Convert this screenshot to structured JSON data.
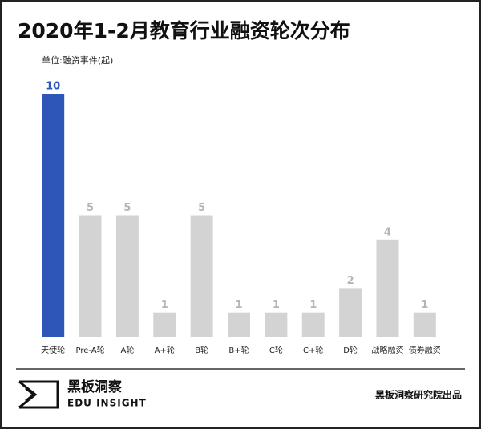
{
  "chart_data": {
    "type": "bar",
    "title": "2020年1-2月教育行业融资轮次分布",
    "subtitle": "单位:融资事件(起)",
    "categories": [
      "天使轮",
      "Pre-A轮",
      "A轮",
      "A+轮",
      "B轮",
      "B+轮",
      "C轮",
      "C+轮",
      "D轮",
      "战略融资",
      "债券融资"
    ],
    "values": [
      10,
      5,
      5,
      1,
      5,
      1,
      1,
      1,
      2,
      4,
      1
    ],
    "colors": [
      "#2e55b8",
      "#d3d3d3",
      "#d3d3d3",
      "#d3d3d3",
      "#d3d3d3",
      "#d3d3d3",
      "#d3d3d3",
      "#d3d3d3",
      "#d3d3d3",
      "#d3d3d3",
      "#d3d3d3"
    ],
    "label_colors": [
      "#2e55b8",
      "#b5b5b5",
      "#b5b5b5",
      "#b5b5b5",
      "#b5b5b5",
      "#b5b5b5",
      "#b5b5b5",
      "#b5b5b5",
      "#b5b5b5",
      "#b5b5b5",
      "#b5b5b5"
    ]
  },
  "footer": {
    "logo_title": "黑板洞察",
    "logo_subtitle": "EDU INSIGHT",
    "source": "黑板洞察研究院出品"
  }
}
